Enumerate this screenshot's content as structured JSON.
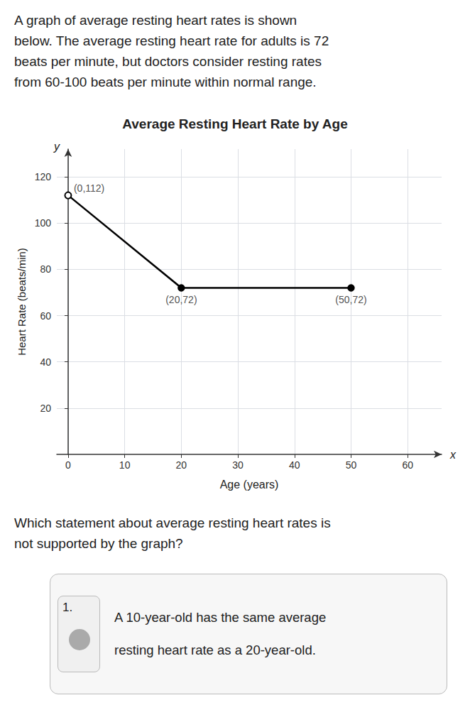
{
  "chart_data": {
    "type": "line",
    "header": [
      "A graph of average resting heart rates is shown",
      "below. The average resting heart rate for adults is 72",
      "beats per minute, but doctors consider resting rates",
      "from 60-100 beats per minute within normal range."
    ],
    "title": "Average Resting Heart Rate by Age",
    "xlabel": "Age (years)",
    "ylabel": "Heart Rate (beats/min)",
    "axis_letters": {
      "x": "x",
      "y": "y"
    },
    "x": [
      0,
      20,
      50
    ],
    "values": [
      112,
      72,
      72
    ],
    "color": "#000000",
    "marker": "circle",
    "xlim": [
      -2,
      66
    ],
    "ylim": [
      0,
      132
    ],
    "xticks": [
      0,
      10,
      20,
      30,
      40,
      50,
      60
    ],
    "yticks": [
      20,
      40,
      60,
      80,
      100,
      120
    ],
    "grid": true,
    "annotations": [
      {
        "x": 0,
        "y": 112,
        "text": "(0,112)"
      },
      {
        "x": 20,
        "y": 72,
        "text": "(20,72)"
      },
      {
        "x": 50,
        "y": 72,
        "text": "(50,72)"
      }
    ],
    "question": [
      "Which statement about average resting heart rates is",
      "not supported by the graph?"
    ],
    "answer": {
      "number": "1.",
      "lines": [
        "A 10-year-old has the same average",
        "resting heart rate as a 20-year-old."
      ]
    }
  }
}
